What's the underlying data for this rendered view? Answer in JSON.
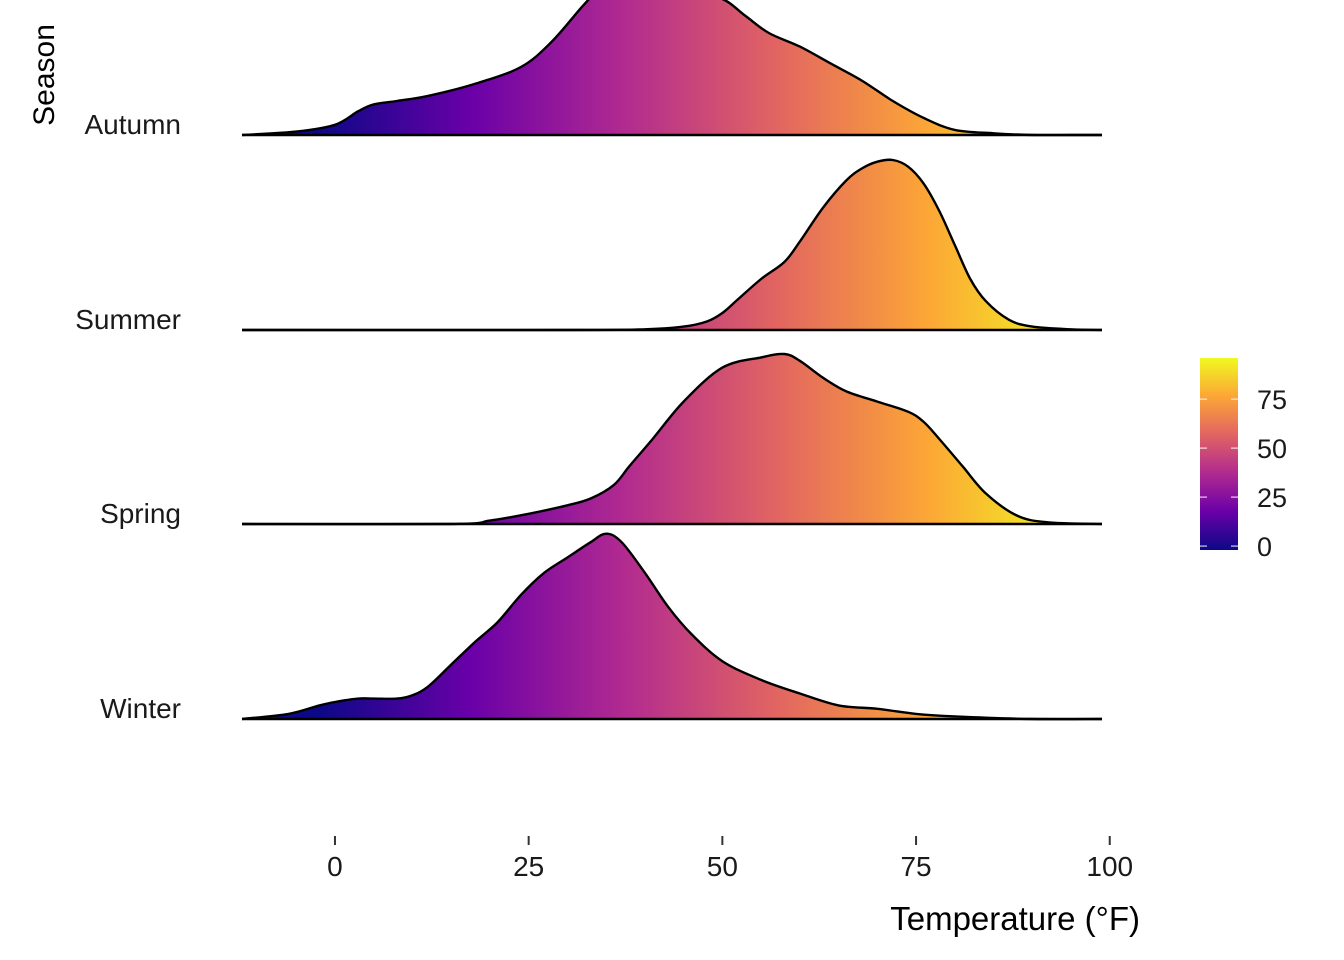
{
  "chart_data": {
    "type": "ridgeline",
    "xlabel": "Temperature (°F)",
    "ylabel": "Season",
    "xlim": [
      -12,
      99
    ],
    "x_ticks": [
      0,
      25,
      50,
      75,
      100
    ],
    "x_tick_labels": [
      "0",
      "25",
      "50",
      "75",
      "100"
    ],
    "grid": false,
    "legend": {
      "position": "right",
      "type": "colorbar",
      "range": [
        -2,
        96
      ],
      "ticks": [
        0,
        25,
        50,
        75
      ],
      "tick_labels": [
        "0",
        "25",
        "50",
        "75"
      ],
      "colormap": "plasma",
      "colors": [
        "#0d0887",
        "#6a00a8",
        "#b12a90",
        "#e16462",
        "#fca636",
        "#f0f921"
      ]
    },
    "series": [
      {
        "name": "Autumn",
        "x": [
          -12,
          -5,
          0,
          3,
          5,
          8,
          12,
          18,
          24,
          28,
          32,
          35,
          37,
          39,
          42,
          46,
          50,
          53,
          56,
          60,
          64,
          68,
          72,
          76,
          80,
          85,
          90,
          95,
          99
        ],
        "density": [
          0.0,
          0.02,
          0.06,
          0.14,
          0.18,
          0.2,
          0.23,
          0.3,
          0.4,
          0.55,
          0.76,
          0.9,
          0.94,
          0.92,
          0.86,
          0.83,
          0.8,
          0.7,
          0.6,
          0.52,
          0.42,
          0.32,
          0.2,
          0.1,
          0.03,
          0.01,
          0.0,
          0.0,
          0.0
        ]
      },
      {
        "name": "Summer",
        "x": [
          -12,
          30,
          40,
          45,
          48,
          50,
          52,
          55,
          58,
          60,
          63,
          66,
          68,
          70,
          72,
          74,
          76,
          78,
          80,
          82,
          84,
          87,
          90,
          95,
          99
        ],
        "density": [
          0.0,
          0.0,
          0.004,
          0.02,
          0.05,
          0.1,
          0.18,
          0.3,
          0.4,
          0.52,
          0.72,
          0.88,
          0.95,
          0.99,
          1.0,
          0.96,
          0.86,
          0.7,
          0.5,
          0.3,
          0.17,
          0.06,
          0.02,
          0.004,
          0.0
        ]
      },
      {
        "name": "Spring",
        "x": [
          -12,
          15,
          20,
          25,
          30,
          33,
          36,
          38,
          41,
          45,
          50,
          55,
          58,
          60,
          63,
          66,
          70,
          74,
          76,
          78,
          81,
          84,
          88,
          92,
          99
        ],
        "density": [
          0.0,
          0.0,
          0.02,
          0.06,
          0.11,
          0.15,
          0.23,
          0.34,
          0.5,
          0.72,
          0.92,
          0.98,
          1.0,
          0.96,
          0.86,
          0.78,
          0.72,
          0.66,
          0.6,
          0.5,
          0.34,
          0.18,
          0.05,
          0.01,
          0.0
        ]
      },
      {
        "name": "Winter",
        "x": [
          -12,
          -6,
          -2,
          0,
          3,
          5,
          8,
          10,
          12,
          15,
          18,
          21,
          24,
          27,
          30,
          33,
          35,
          37,
          40,
          43,
          46,
          50,
          55,
          60,
          65,
          70,
          75,
          80,
          90,
          99
        ],
        "density": [
          0.0,
          0.03,
          0.08,
          0.1,
          0.12,
          0.12,
          0.12,
          0.14,
          0.19,
          0.32,
          0.45,
          0.57,
          0.73,
          0.86,
          0.95,
          1.04,
          1.09,
          1.04,
          0.86,
          0.66,
          0.5,
          0.34,
          0.23,
          0.15,
          0.08,
          0.06,
          0.03,
          0.015,
          0.0,
          0.0
        ]
      }
    ]
  }
}
